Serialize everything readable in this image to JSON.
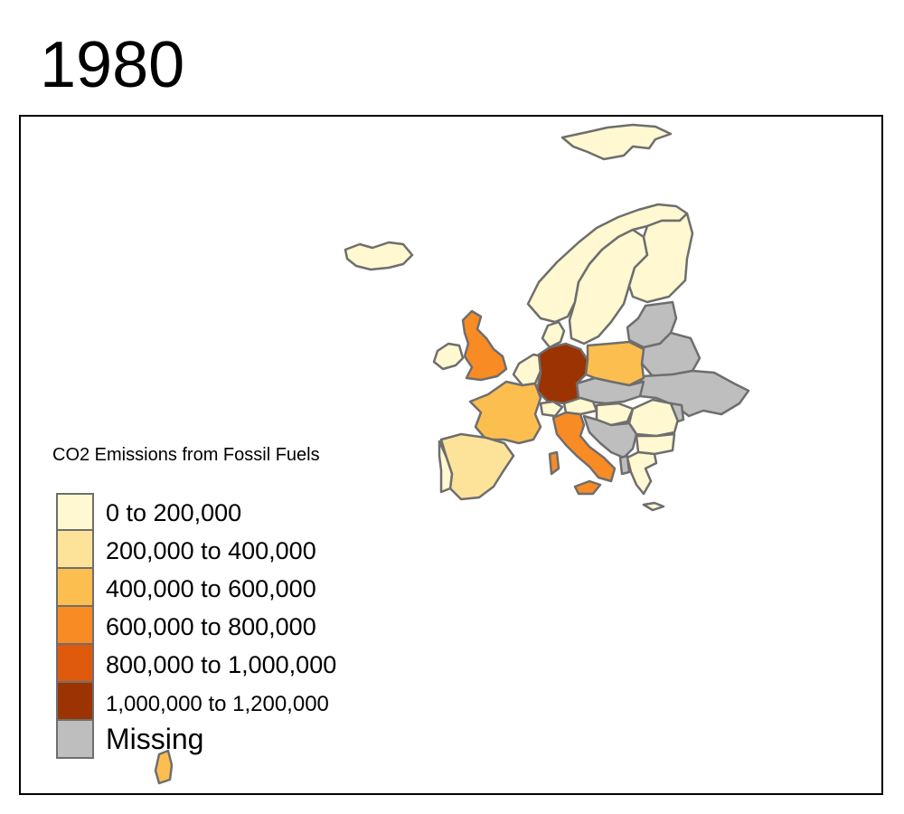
{
  "title": "1980",
  "legend": {
    "title": "CO2 Emissions from Fossil Fuels",
    "items": [
      {
        "label": "0 to 200,000",
        "color": "#FFF8D0"
      },
      {
        "label": "200,000 to 400,000",
        "color": "#FDE39A"
      },
      {
        "label": "400,000 to 600,000",
        "color": "#FDBE50"
      },
      {
        "label": "600,000 to 800,000",
        "color": "#F98B24"
      },
      {
        "label": "800,000 to 1,000,000",
        "color": "#DF5A0C"
      },
      {
        "label": "1,000,000 to 1,200,000",
        "color": "#9B3303"
      },
      {
        "label": "Missing",
        "color": "#BEBEBE"
      }
    ]
  },
  "map": {
    "region": "Europe",
    "year": "1980",
    "country_classes": {
      "Germany": "1,000,000 to 1,200,000",
      "United Kingdom": "600,000 to 800,000",
      "France": "400,000 to 600,000",
      "Poland": "400,000 to 600,000",
      "Italy": "600,000 to 800,000",
      "Spain": "200,000 to 400,000",
      "Norway": "0 to 200,000",
      "Sweden": "0 to 200,000",
      "Finland": "0 to 200,000",
      "Iceland": "0 to 200,000",
      "Ireland": "0 to 200,000",
      "Portugal": "0 to 200,000",
      "Netherlands": "0 to 200,000",
      "Belgium": "0 to 200,000",
      "Denmark": "0 to 200,000",
      "Switzerland": "0 to 200,000",
      "Austria": "0 to 200,000",
      "Hungary": "0 to 200,000",
      "Romania": "0 to 200,000",
      "Bulgaria": "0 to 200,000",
      "Greece": "0 to 200,000",
      "Svalbard": "0 to 200,000",
      "Czechoslovakia": "Missing",
      "Yugoslavia": "Missing",
      "Baltic states": "Missing",
      "Belarus": "Missing",
      "Ukraine": "Missing",
      "Moldova": "Missing",
      "Albania": "Missing",
      "Canary Islands": "400,000 to 600,000"
    }
  }
}
